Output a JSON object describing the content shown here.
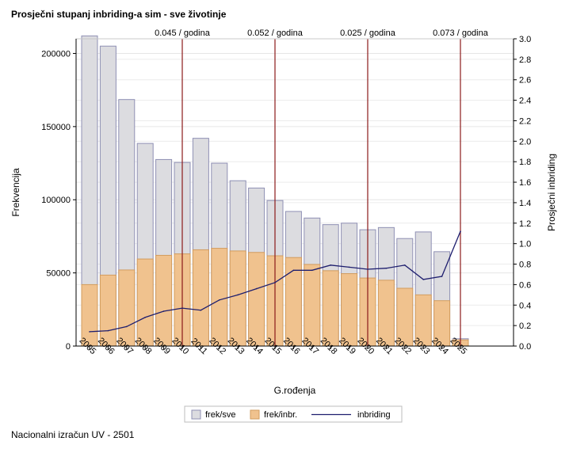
{
  "title": "Prosječni stupanj inbriding-a sim - sve životinje",
  "footnote": "Nacionalni izračun UV - 2501",
  "chart_data": {
    "type": "bar",
    "title": "Prosječni stupanj inbriding-a sim - sve životinje",
    "xlabel": "G.rođenja",
    "ylabel": "Frekvencija",
    "y2label": "Prosječni inbriding",
    "categories": [
      "2005",
      "2006",
      "2007",
      "2008",
      "2009",
      "2010",
      "2011",
      "2012",
      "2013",
      "2014",
      "2015",
      "2016",
      "2017",
      "2018",
      "2019",
      "2020",
      "2021",
      "2022",
      "2023",
      "2024",
      "2025"
    ],
    "ylim": [
      0,
      210000
    ],
    "y2lim": [
      0,
      3.0
    ],
    "yticks": [
      0,
      50000,
      100000,
      150000,
      200000
    ],
    "y2ticks": [
      "0.0",
      "0.2",
      "0.4",
      "0.6",
      "0.8",
      "1.0",
      "1.2",
      "1.4",
      "1.6",
      "1.8",
      "2.0",
      "2.2",
      "2.4",
      "2.6",
      "2.8",
      "3.0"
    ],
    "grid": true,
    "legend_position": "bottom",
    "series": [
      {
        "name": "frek/sve",
        "type": "bar",
        "axis": "left",
        "color": "#dcdce0",
        "stroke": "#8f90b4",
        "values": [
          212000,
          205000,
          168500,
          138500,
          127500,
          125500,
          142000,
          125000,
          113000,
          108000,
          99500,
          92000,
          87500,
          83000,
          84000,
          79500,
          81000,
          73500,
          78000,
          64500,
          5000
        ]
      },
      {
        "name": "frek/inbr.",
        "type": "bar",
        "axis": "left",
        "color": "#f0c28e",
        "stroke": "#d29c5e",
        "values": [
          42000,
          48500,
          52000,
          59500,
          62000,
          63000,
          65800,
          66800,
          65000,
          64000,
          61700,
          60500,
          55800,
          51500,
          49500,
          46500,
          45000,
          39500,
          35000,
          31000,
          4200
        ]
      },
      {
        "name": "inbriding",
        "type": "line",
        "axis": "right",
        "color": "#1e1e6e",
        "values": [
          0.14,
          0.15,
          0.19,
          0.28,
          0.34,
          0.37,
          0.35,
          0.45,
          0.5,
          0.56,
          0.62,
          0.74,
          0.74,
          0.79,
          0.77,
          0.75,
          0.76,
          0.79,
          0.65,
          0.68,
          1.12
        ]
      }
    ],
    "reference_lines": [
      {
        "position": "2010",
        "label": "0.045 / godina",
        "color": "#8b1a1a"
      },
      {
        "position": "2015",
        "label": "0.052 / godina",
        "color": "#8b1a1a"
      },
      {
        "position": "2020",
        "label": "0.025 / godina",
        "color": "#8b1a1a"
      },
      {
        "position": "2025",
        "label": "0.073 / godina",
        "color": "#8b1a1a"
      }
    ]
  }
}
